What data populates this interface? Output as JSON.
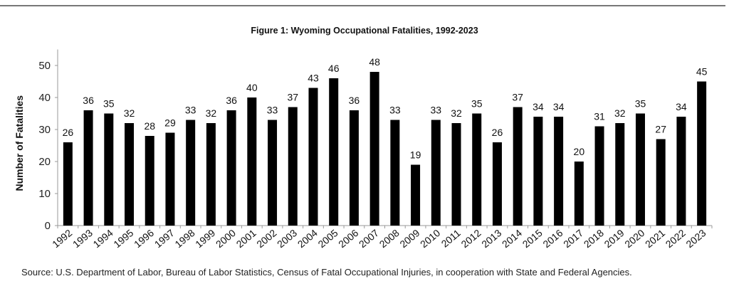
{
  "chart_data": {
    "type": "bar",
    "title": "Figure 1: Wyoming Occupational Fatalities, 1992-2023",
    "xlabel": "",
    "ylabel": "Number of Fatalities",
    "ylim": [
      0,
      55
    ],
    "yticks": [
      0,
      10,
      20,
      30,
      40,
      50
    ],
    "grid": false,
    "categories": [
      "1992",
      "1993",
      "1994",
      "1995",
      "1996",
      "1997",
      "1998",
      "1999",
      "2000",
      "2001",
      "2002",
      "2003",
      "2004",
      "2005",
      "2006",
      "2007",
      "2008",
      "2009",
      "2010",
      "2011",
      "2012",
      "2013",
      "2014",
      "2015",
      "2016",
      "2017",
      "2018",
      "2019",
      "2020",
      "2021",
      "2022",
      "2023"
    ],
    "values": [
      26,
      36,
      35,
      32,
      28,
      29,
      33,
      32,
      36,
      40,
      33,
      37,
      43,
      46,
      36,
      48,
      33,
      19,
      33,
      32,
      35,
      26,
      37,
      34,
      34,
      20,
      31,
      32,
      35,
      27,
      34,
      45
    ],
    "bar_color": "#000000"
  },
  "source": "Source: U.S. Department of Labor, Bureau of Labor Statistics, Census of Fatal Occupational Injuries, in cooperation with State and Federal  Agencies."
}
